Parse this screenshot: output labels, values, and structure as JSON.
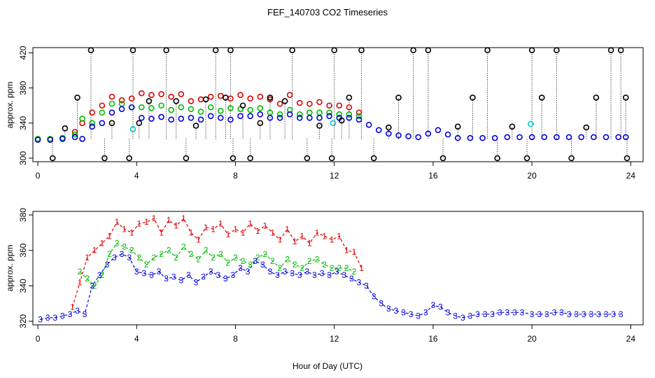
{
  "chart_data": [
    {
      "type": "scatter",
      "title": "FEF_140703  CO2 Timeseries",
      "ylabel": "approx. ppm",
      "xlabel": "",
      "xlim": [
        -0.2,
        24.5
      ],
      "ylim": [
        296,
        426
      ],
      "xticks": [
        0,
        4,
        8,
        12,
        16,
        20,
        24
      ],
      "yticks": [
        300,
        340,
        380,
        420
      ],
      "grid": false,
      "legend": "none",
      "colors": {
        "s1": "#dd0000",
        "s2": "#00bb00",
        "s3": "#0000dd",
        "ref": "#000000",
        "extra": "#00cccc"
      },
      "series": [
        {
          "key": "s1",
          "x": [
            0,
            0.5,
            1,
            1.5,
            1.8,
            2.2,
            2.6,
            3.0,
            3.4,
            3.8,
            4.2,
            4.6,
            5.0,
            5.4,
            5.8,
            6.2,
            6.6,
            7.0,
            7.4,
            7.8,
            8.2,
            8.6,
            9.0,
            9.4,
            9.8,
            10.2,
            10.6,
            11.0,
            11.4,
            11.8,
            12.2,
            12.6,
            13.0
          ],
          "y": [
            322,
            322,
            323,
            330,
            340,
            352,
            360,
            370,
            366,
            368,
            374,
            372,
            373,
            370,
            373,
            365,
            367,
            370,
            371,
            368,
            372,
            368,
            370,
            367,
            362,
            372,
            363,
            362,
            364,
            360,
            360,
            358,
            352
          ]
        },
        {
          "key": "s2",
          "x": [
            0,
            0.5,
            1,
            1.5,
            1.8,
            2.2,
            2.6,
            3.0,
            3.4,
            3.8,
            4.2,
            4.6,
            5.0,
            5.4,
            5.8,
            6.2,
            6.6,
            7.0,
            7.4,
            7.8,
            8.2,
            8.6,
            9.0,
            9.4,
            9.8,
            10.2,
            10.6,
            11.0,
            11.4,
            11.8,
            12.2,
            12.6,
            13.0
          ],
          "y": [
            322,
            322,
            323,
            327,
            345,
            340,
            352,
            362,
            362,
            358,
            358,
            357,
            360,
            355,
            358,
            356,
            353,
            358,
            354,
            357,
            356,
            355,
            357,
            352,
            350,
            355,
            350,
            352,
            352,
            352,
            350,
            350,
            348
          ]
        },
        {
          "key": "s3",
          "x": [
            0,
            0.5,
            1,
            1.5,
            1.8,
            2.2,
            2.6,
            3.0,
            3.4,
            3.8,
            4.2,
            4.6,
            5.0,
            5.4,
            5.8,
            6.2,
            6.6,
            7.0,
            7.4,
            7.8,
            8.2,
            8.6,
            9.0,
            9.4,
            9.8,
            10.2,
            10.6,
            11.0,
            11.4,
            11.8,
            12.2,
            12.6,
            13.0,
            13.4,
            13.8,
            14.2,
            14.6,
            15.0,
            15.4,
            15.8,
            16.2,
            16.6,
            17.0,
            17.5,
            18.0,
            18.5,
            19.0,
            19.5,
            20.0,
            20.5,
            21.0,
            21.5,
            22.0,
            22.5,
            23.0,
            23.5,
            23.8
          ],
          "y": [
            321,
            321,
            322,
            324,
            322,
            336,
            340,
            352,
            356,
            358,
            346,
            345,
            347,
            344,
            345,
            346,
            344,
            348,
            346,
            344,
            348,
            348,
            350,
            346,
            346,
            350,
            346,
            346,
            346,
            348,
            346,
            346,
            344,
            338,
            332,
            328,
            326,
            325,
            324,
            328,
            332,
            327,
            323,
            323,
            323,
            323,
            324,
            324,
            324,
            324,
            324,
            324,
            324,
            324,
            324,
            324,
            324
          ]
        },
        {
          "key": "ref",
          "x": [
            0.6,
            1.1,
            1.6,
            2.15,
            2.7,
            3.0,
            3.7,
            3.85,
            4.1,
            4.5,
            5.2,
            5.6,
            6.0,
            6.4,
            6.8,
            7.2,
            7.6,
            7.8,
            7.9,
            8.3,
            8.6,
            9.0,
            9.4,
            10.0,
            10.3,
            10.9,
            11.4,
            11.9,
            12.0,
            12.3,
            12.6,
            13.1,
            13.6,
            14.2,
            14.6,
            15.2,
            15.8,
            16.4,
            17.0,
            17.6,
            18.2,
            18.6,
            19.2,
            19.8,
            20.0,
            20.4,
            21.0,
            21.6,
            22.2,
            22.6,
            23.2,
            23.6,
            23.8,
            23.85
          ],
          "y": [
            300,
            334,
            369,
            423,
            300,
            340,
            300,
            423,
            340,
            365,
            423,
            365,
            300,
            337,
            367,
            423,
            369,
            423,
            300,
            360,
            300,
            340,
            369,
            365,
            423,
            300,
            337,
            300,
            423,
            343,
            369,
            423,
            300,
            335,
            369,
            423,
            423,
            300,
            336,
            369,
            423,
            300,
            336,
            300,
            423,
            369,
            423,
            300,
            335,
            369,
            423,
            423,
            369,
            300
          ]
        },
        {
          "key": "extra",
          "x": [
            3.85,
            11.95,
            19.95
          ],
          "y": [
            333,
            340,
            339
          ]
        }
      ]
    },
    {
      "type": "scatter",
      "title": "",
      "ylabel": "approx. ppm",
      "xlabel": "Hour of Day (UTC)",
      "xlim": [
        -0.2,
        24.5
      ],
      "ylim": [
        318,
        382
      ],
      "xticks": [
        0,
        4,
        8,
        12,
        16,
        20,
        24
      ],
      "yticks": [
        320,
        340,
        360,
        380
      ],
      "grid": false,
      "legend": "none",
      "series": [
        {
          "key": "s1",
          "marker": "1",
          "x": [
            1.4,
            1.7,
            2.0,
            2.3,
            2.6,
            2.9,
            3.2,
            3.5,
            3.8,
            4.1,
            4.4,
            4.7,
            5.0,
            5.3,
            5.6,
            5.9,
            6.2,
            6.5,
            6.8,
            7.1,
            7.4,
            7.7,
            8.0,
            8.3,
            8.6,
            8.9,
            9.2,
            9.5,
            9.8,
            10.1,
            10.4,
            10.7,
            11.0,
            11.3,
            11.6,
            11.9,
            12.2,
            12.5,
            12.8,
            13.1
          ],
          "y": [
            328,
            342,
            356,
            360,
            364,
            368,
            376,
            372,
            370,
            375,
            376,
            378,
            370,
            377,
            374,
            378,
            370,
            366,
            373,
            372,
            375,
            369,
            372,
            370,
            375,
            371,
            374,
            370,
            366,
            372,
            365,
            368,
            364,
            370,
            368,
            366,
            368,
            360,
            359,
            350
          ]
        },
        {
          "key": "s2",
          "marker": "2",
          "x": [
            1.7,
            2.0,
            2.3,
            2.6,
            2.9,
            3.2,
            3.5,
            3.8,
            4.1,
            4.4,
            4.7,
            5.0,
            5.3,
            5.6,
            5.9,
            6.2,
            6.5,
            6.8,
            7.1,
            7.4,
            7.7,
            8.0,
            8.3,
            8.6,
            8.9,
            9.2,
            9.5,
            9.8,
            10.1,
            10.4,
            10.7,
            11.0,
            11.3,
            11.6,
            11.9,
            12.2,
            12.5,
            12.8
          ],
          "y": [
            348,
            344,
            340,
            346,
            358,
            364,
            362,
            360,
            356,
            352,
            356,
            358,
            360,
            356,
            362,
            358,
            355,
            360,
            356,
            358,
            353,
            356,
            354,
            352,
            356,
            358,
            354,
            350,
            355,
            352,
            350,
            354,
            355,
            352,
            350,
            350,
            350,
            348
          ]
        },
        {
          "key": "s3",
          "marker": "3",
          "x": [
            0.1,
            0.4,
            0.7,
            1.0,
            1.3,
            1.6,
            1.9,
            2.2,
            2.5,
            2.8,
            3.1,
            3.4,
            3.7,
            4.0,
            4.3,
            4.6,
            4.9,
            5.2,
            5.5,
            5.8,
            6.1,
            6.4,
            6.7,
            7.0,
            7.3,
            7.6,
            7.9,
            8.2,
            8.5,
            8.8,
            9.1,
            9.4,
            9.7,
            10.0,
            10.3,
            10.6,
            10.9,
            11.2,
            11.5,
            11.8,
            12.1,
            12.4,
            12.7,
            13.0,
            13.3,
            13.6,
            13.9,
            14.2,
            14.5,
            14.8,
            15.1,
            15.4,
            15.7,
            16.0,
            16.3,
            16.6,
            16.9,
            17.2,
            17.5,
            17.8,
            18.1,
            18.4,
            18.7,
            19.0,
            19.3,
            19.6,
            20.0,
            20.3,
            20.6,
            20.9,
            21.2,
            21.5,
            21.8,
            22.1,
            22.4,
            22.7,
            23.0,
            23.3,
            23.6
          ],
          "y": [
            321,
            322,
            322,
            323,
            324,
            326,
            324,
            340,
            346,
            352,
            356,
            358,
            356,
            348,
            347,
            346,
            348,
            344,
            345,
            343,
            346,
            342,
            345,
            348,
            346,
            344,
            346,
            350,
            348,
            354,
            352,
            348,
            346,
            348,
            347,
            346,
            348,
            346,
            347,
            346,
            348,
            346,
            344,
            342,
            340,
            334,
            330,
            327,
            326,
            325,
            324,
            323,
            325,
            329,
            328,
            325,
            323,
            322,
            323,
            324,
            324,
            324,
            325,
            325,
            325,
            325,
            324,
            324,
            324,
            325,
            325,
            324,
            324,
            324,
            324,
            324,
            324,
            324,
            324
          ]
        }
      ]
    }
  ]
}
